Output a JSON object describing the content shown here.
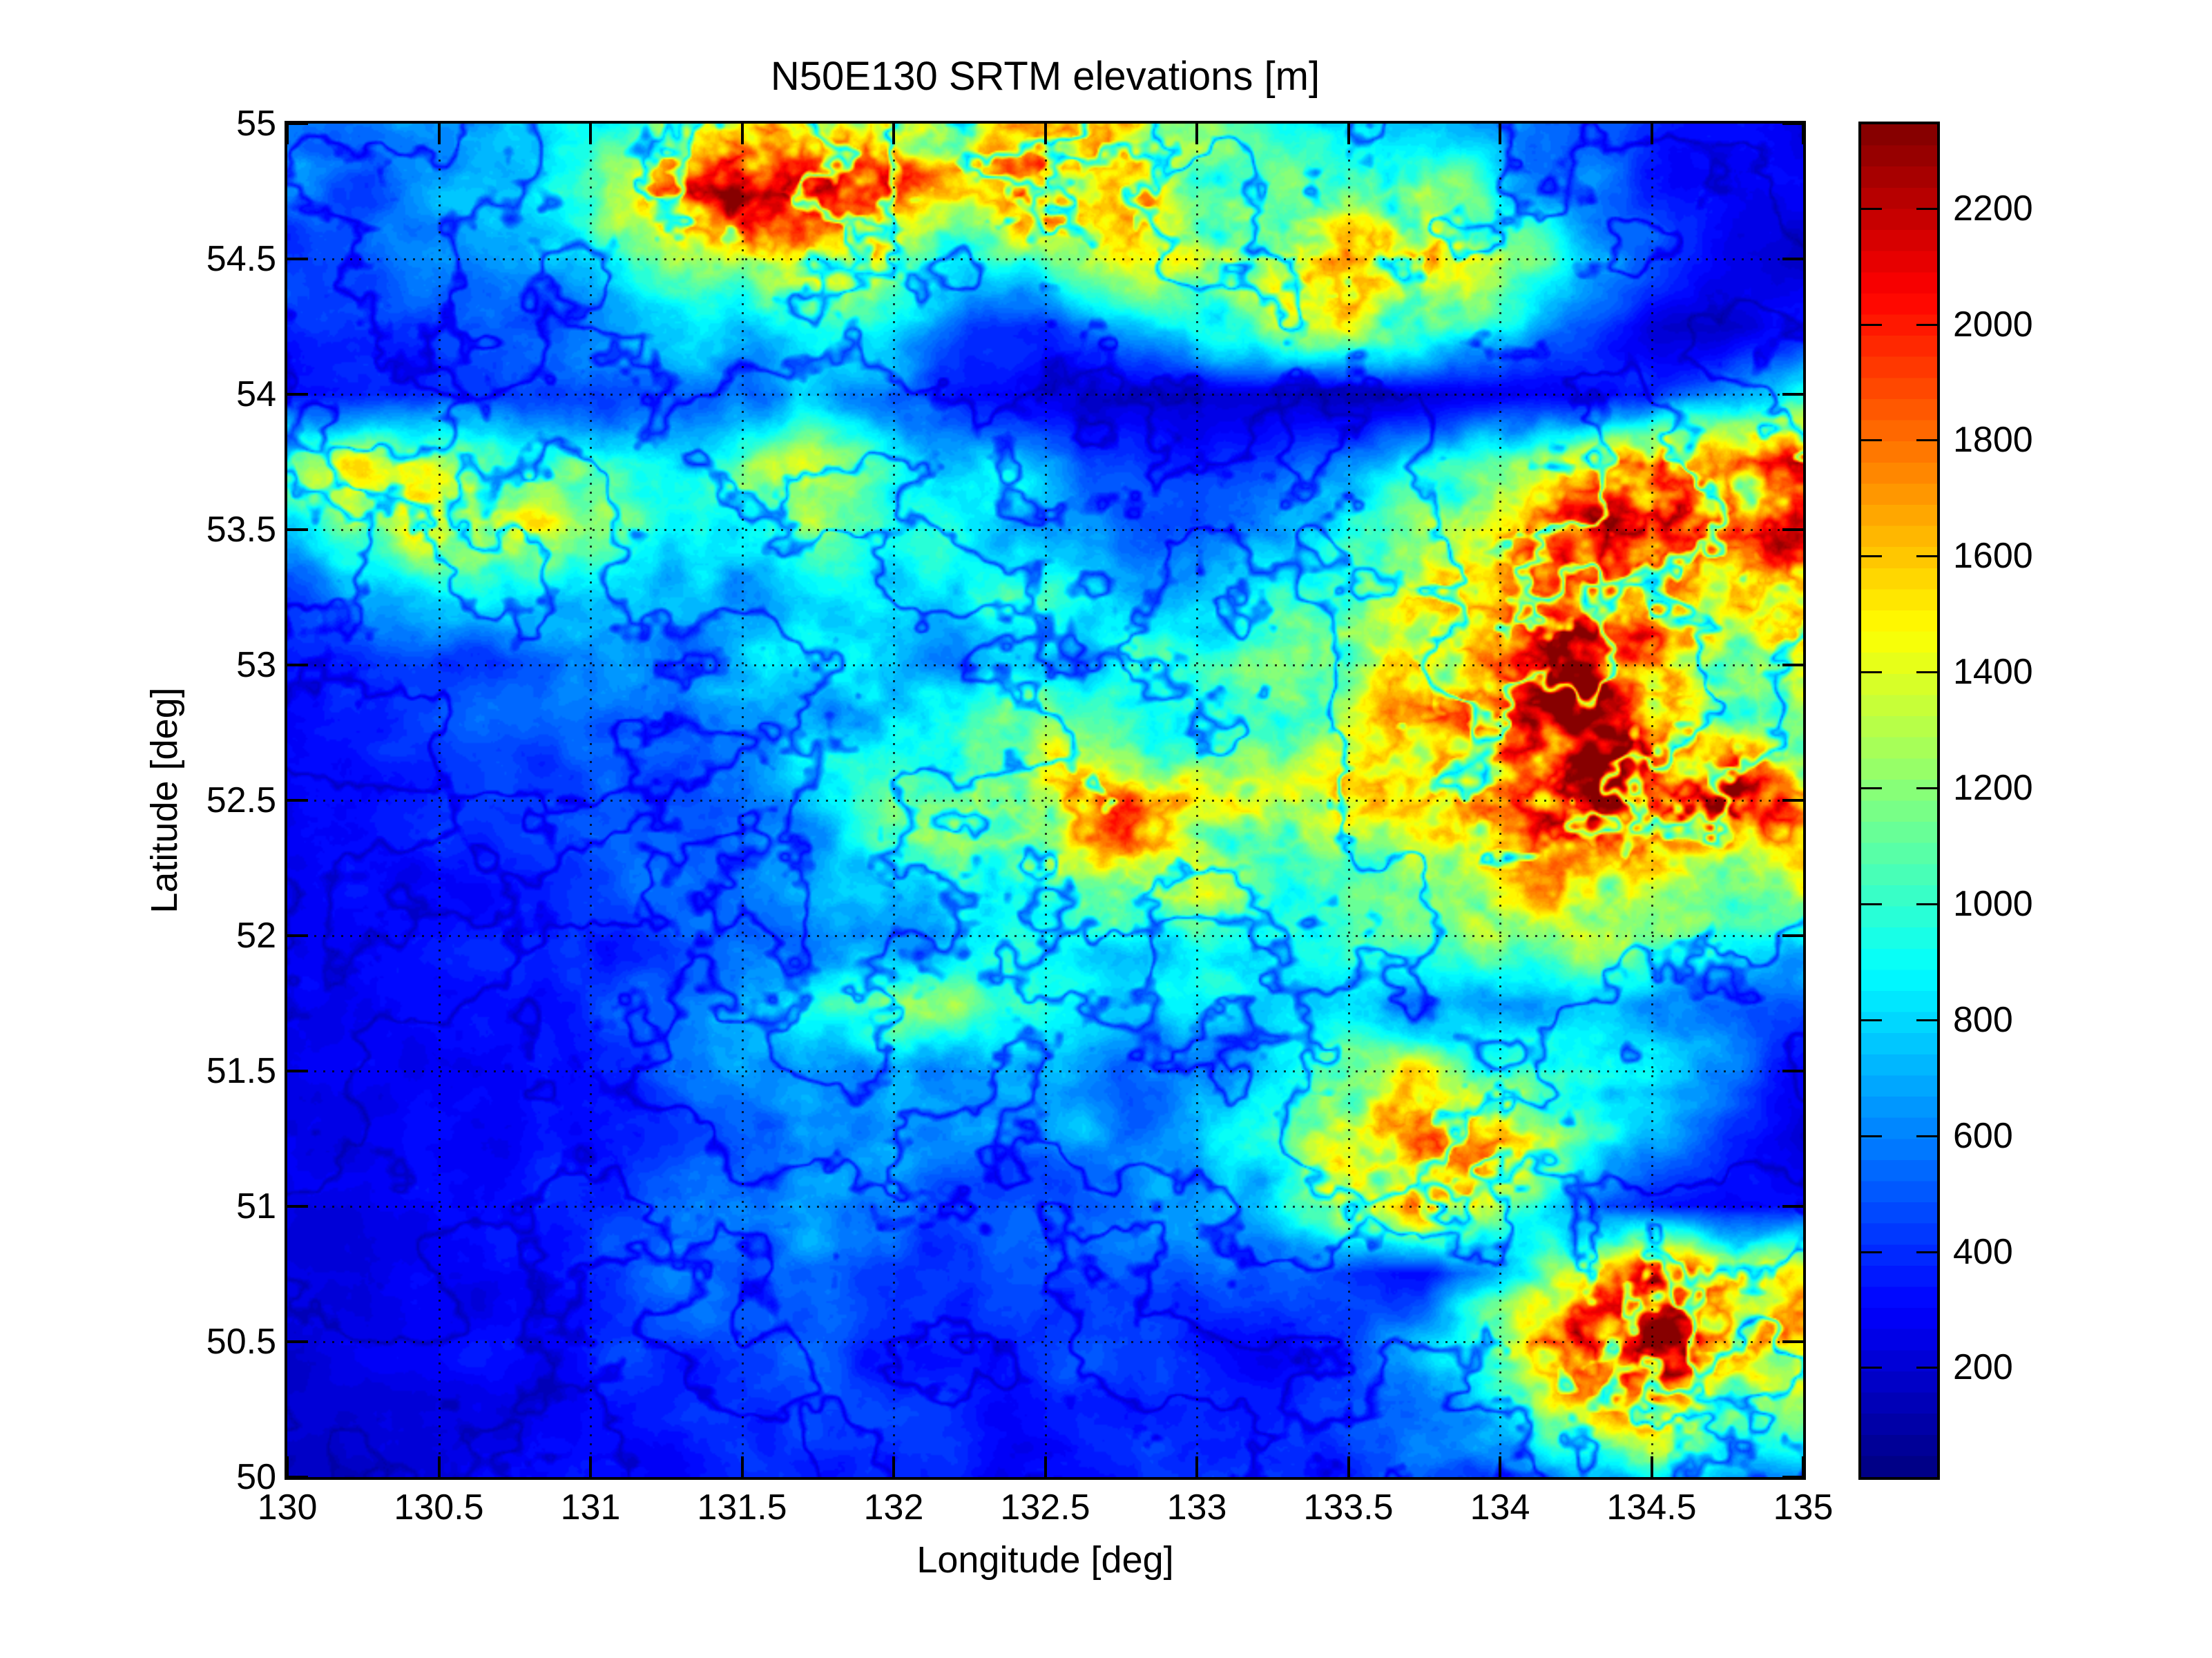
{
  "figure": {
    "title": "N50E130 SRTM elevations [m]",
    "background_color": "#ffffff"
  },
  "axes": {
    "xlabel": "Longitude [deg]",
    "ylabel": "Latitude [deg]",
    "x_tick_values": [
      130,
      130.5,
      131,
      131.5,
      132,
      132.5,
      133,
      133.5,
      134,
      134.5,
      135
    ],
    "x_tick_labels": [
      "130",
      "130.5",
      "131",
      "131.5",
      "132",
      "132.5",
      "133",
      "133.5",
      "134",
      "134.5",
      "135"
    ],
    "y_tick_values": [
      50,
      50.5,
      51,
      51.5,
      52,
      52.5,
      53,
      53.5,
      54,
      54.5,
      55
    ],
    "y_tick_labels": [
      "50",
      "50.5",
      "51",
      "51.5",
      "52",
      "52.5",
      "53",
      "53.5",
      "54",
      "54.5",
      "55"
    ],
    "grid": "on",
    "grid_style": "dotted",
    "box": "on"
  },
  "colorbar": {
    "location": "right",
    "tick_values": [
      200,
      400,
      600,
      800,
      1000,
      1200,
      1400,
      1600,
      1800,
      2000,
      2200
    ],
    "tick_labels": [
      "200",
      "400",
      "600",
      "800",
      "1000",
      "1200",
      "1400",
      "1600",
      "1800",
      "2000",
      "2200"
    ],
    "unit": "m"
  },
  "chart_data": {
    "type": "heatmap",
    "title": "N50E130 SRTM elevations [m]",
    "xlabel": "Longitude [deg]",
    "ylabel": "Latitude [deg]",
    "x_range": [
      130,
      135
    ],
    "y_range": [
      50,
      55
    ],
    "value_unit": "m",
    "color_scale": {
      "name": "jet",
      "levels": 64,
      "vmin": 11,
      "vmax": 2345
    },
    "legend_position": "right-colorbar",
    "grid": true,
    "lons": [
      130,
      130.25,
      130.5,
      130.75,
      131,
      131.25,
      131.5,
      131.75,
      132,
      132.25,
      132.5,
      132.75,
      133,
      133.25,
      133.5,
      133.75,
      134,
      134.25,
      134.5,
      134.75,
      135
    ],
    "lats": [
      55,
      54.75,
      54.5,
      54.25,
      54,
      53.75,
      53.5,
      53.25,
      53,
      52.75,
      52.5,
      52.25,
      52,
      51.75,
      51.5,
      51.25,
      51,
      50.75,
      50.5,
      50.25,
      50
    ],
    "grid_elevations_m": [
      [
        700,
        620,
        560,
        650,
        820,
        1150,
        1450,
        1600,
        1500,
        1250,
        1500,
        1550,
        1050,
        850,
        800,
        700,
        600,
        480,
        400,
        330,
        300
      ],
      [
        520,
        540,
        620,
        720,
        950,
        1500,
        1850,
        1750,
        1550,
        1300,
        1750,
        1450,
        1200,
        1000,
        1150,
        1250,
        800,
        600,
        430,
        300,
        250
      ],
      [
        460,
        490,
        560,
        660,
        820,
        1050,
        1250,
        1450,
        1150,
        900,
        1000,
        1200,
        1300,
        1400,
        1550,
        1600,
        1150,
        750,
        450,
        250,
        160
      ],
      [
        410,
        430,
        460,
        510,
        610,
        720,
        820,
        920,
        810,
        420,
        320,
        620,
        920,
        1120,
        1300,
        1100,
        880,
        500,
        200,
        160,
        320
      ],
      [
        360,
        360,
        410,
        460,
        510,
        560,
        610,
        660,
        560,
        360,
        260,
        210,
        180,
        160,
        160,
        210,
        260,
        320,
        420,
        700,
        900
      ],
      [
        1000,
        1300,
        1250,
        1120,
        1000,
        920,
        1000,
        1100,
        1000,
        820,
        620,
        420,
        310,
        410,
        610,
        820,
        1050,
        1400,
        1800,
        1650,
        1900
      ],
      [
        820,
        1020,
        1400,
        1220,
        1020,
        820,
        920,
        1020,
        920,
        820,
        720,
        620,
        520,
        720,
        920,
        1120,
        1320,
        1720,
        2000,
        1820,
        1620
      ],
      [
        520,
        620,
        720,
        820,
        720,
        620,
        720,
        820,
        820,
        920,
        920,
        820,
        720,
        920,
        1120,
        1320,
        1520,
        1820,
        1620,
        1420,
        1720
      ],
      [
        400,
        400,
        450,
        500,
        600,
        700,
        800,
        900,
        820,
        720,
        820,
        920,
        1000,
        1100,
        1200,
        1400,
        1620,
        1900,
        1520,
        1220,
        1420
      ],
      [
        380,
        380,
        400,
        450,
        500,
        600,
        700,
        820,
        920,
        1020,
        1120,
        1020,
        920,
        1020,
        1220,
        1420,
        1720,
        2020,
        1720,
        1320,
        1120
      ],
      [
        350,
        350,
        380,
        400,
        450,
        500,
        600,
        820,
        1020,
        1220,
        1420,
        1620,
        1420,
        1220,
        1320,
        1520,
        1820,
        2020,
        1820,
        2020,
        1620
      ],
      [
        300,
        320,
        350,
        380,
        420,
        480,
        550,
        700,
        900,
        1100,
        1300,
        1420,
        1220,
        1020,
        1020,
        1120,
        1320,
        1520,
        1320,
        1220,
        1320
      ],
      [
        280,
        300,
        320,
        350,
        380,
        420,
        500,
        600,
        700,
        820,
        920,
        1020,
        1000,
        920,
        920,
        1020,
        1120,
        1220,
        1020,
        820,
        920
      ],
      [
        260,
        280,
        300,
        350,
        400,
        500,
        700,
        900,
        1100,
        1000,
        820,
        720,
        700,
        820,
        820,
        720,
        720,
        820,
        720,
        620,
        520
      ],
      [
        250,
        270,
        300,
        350,
        400,
        500,
        600,
        700,
        800,
        720,
        620,
        560,
        600,
        820,
        1020,
        1220,
        1020,
        920,
        820,
        520,
        300
      ],
      [
        240,
        260,
        280,
        320,
        380,
        450,
        550,
        650,
        700,
        650,
        600,
        600,
        700,
        1000,
        1400,
        1700,
        1500,
        1100,
        700,
        350,
        200
      ],
      [
        230,
        250,
        280,
        320,
        400,
        500,
        600,
        650,
        600,
        550,
        500,
        550,
        650,
        900,
        1300,
        1600,
        1200,
        600,
        300,
        250,
        400
      ],
      [
        220,
        240,
        270,
        320,
        400,
        500,
        550,
        500,
        450,
        400,
        450,
        500,
        500,
        500,
        400,
        300,
        700,
        1300,
        1700,
        1500,
        1300
      ],
      [
        210,
        230,
        260,
        300,
        350,
        450,
        500,
        450,
        400,
        380,
        400,
        450,
        350,
        300,
        400,
        700,
        1200,
        1800,
        2000,
        1700,
        1400
      ],
      [
        200,
        220,
        250,
        280,
        320,
        380,
        420,
        400,
        380,
        350,
        380,
        400,
        380,
        350,
        400,
        600,
        900,
        1400,
        1600,
        1300,
        1000
      ],
      [
        200,
        210,
        230,
        260,
        300,
        350,
        400,
        380,
        350,
        320,
        350,
        400,
        420,
        400,
        450,
        500,
        600,
        800,
        900,
        700,
        600
      ]
    ]
  }
}
